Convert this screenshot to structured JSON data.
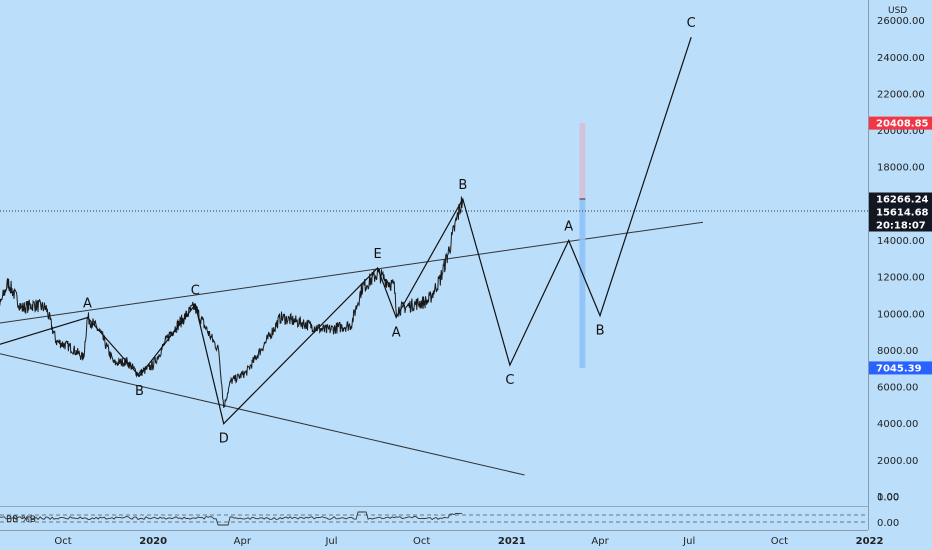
{
  "chart_data": {
    "type": "line",
    "currency": "USD",
    "y_axis": {
      "min": 0,
      "max": 26000,
      "ticks": [
        "0.00",
        "2000.00",
        "4000.00",
        "6000.00",
        "8000.00",
        "10000.00",
        "12000.00",
        "14000.00",
        "16000.00",
        "18000.00",
        "20000.00",
        "22000.00",
        "24000.00",
        "26000.00"
      ],
      "tick_values": [
        0,
        2000,
        4000,
        6000,
        8000,
        10000,
        12000,
        14000,
        16000,
        18000,
        20000,
        22000,
        24000,
        26000
      ]
    },
    "x_axis": {
      "labels": [
        "Oct",
        "2020",
        "Apr",
        "Jul",
        "Oct",
        "2021",
        "Apr",
        "Jul",
        "Oct",
        "2022"
      ],
      "dates": [
        "2019-10-01",
        "2020-01-01",
        "2020-04-01",
        "2020-07-01",
        "2020-10-01",
        "2021-01-01",
        "2021-04-01",
        "2021-07-01",
        "2021-10-01",
        "2022-01-01"
      ]
    },
    "price_series": [
      {
        "date": "2019-06-26",
        "value": 12500
      },
      {
        "date": "2019-07-05",
        "value": 11300
      },
      {
        "date": "2019-07-16",
        "value": 9800
      },
      {
        "date": "2019-07-28",
        "value": 10400
      },
      {
        "date": "2019-08-06",
        "value": 11700
      },
      {
        "date": "2019-08-20",
        "value": 10300
      },
      {
        "date": "2019-09-01",
        "value": 10500
      },
      {
        "date": "2019-09-14",
        "value": 10300
      },
      {
        "date": "2019-09-24",
        "value": 8500
      },
      {
        "date": "2019-10-08",
        "value": 8200
      },
      {
        "date": "2019-10-22",
        "value": 7600
      },
      {
        "date": "2019-10-26",
        "value": 9800
      },
      {
        "date": "2019-11-08",
        "value": 9000
      },
      {
        "date": "2019-11-22",
        "value": 7300
      },
      {
        "date": "2019-12-05",
        "value": 7400
      },
      {
        "date": "2019-12-17",
        "value": 6700
      },
      {
        "date": "2020-01-01",
        "value": 7200
      },
      {
        "date": "2020-01-18",
        "value": 8900
      },
      {
        "date": "2020-02-12",
        "value": 10400
      },
      {
        "date": "2020-02-26",
        "value": 9000
      },
      {
        "date": "2020-03-08",
        "value": 8000
      },
      {
        "date": "2020-03-13",
        "value": 4900
      },
      {
        "date": "2020-03-20",
        "value": 6300
      },
      {
        "date": "2020-04-05",
        "value": 6800
      },
      {
        "date": "2020-04-29",
        "value": 8800
      },
      {
        "date": "2020-05-10",
        "value": 9800
      },
      {
        "date": "2020-06-01",
        "value": 9500
      },
      {
        "date": "2020-06-25",
        "value": 9100
      },
      {
        "date": "2020-07-21",
        "value": 9400
      },
      {
        "date": "2020-08-01",
        "value": 11400
      },
      {
        "date": "2020-08-17",
        "value": 12200
      },
      {
        "date": "2020-09-03",
        "value": 11500
      },
      {
        "date": "2020-09-05",
        "value": 10200
      },
      {
        "date": "2020-09-22",
        "value": 10500
      },
      {
        "date": "2020-10-08",
        "value": 10700
      },
      {
        "date": "2020-10-20",
        "value": 11900
      },
      {
        "date": "2020-10-28",
        "value": 13300
      },
      {
        "date": "2020-11-07",
        "value": 15400
      },
      {
        "date": "2020-11-12",
        "value": 16266
      }
    ],
    "wave_path": [
      {
        "date": "2019-07-20",
        "value": 8200
      },
      {
        "date": "2019-10-26",
        "value": 9800,
        "label": "A"
      },
      {
        "date": "2019-12-18",
        "value": 6600,
        "label": "B"
      },
      {
        "date": "2020-02-13",
        "value": 10500,
        "label": "C"
      },
      {
        "date": "2020-03-13",
        "value": 4000,
        "label": "D"
      },
      {
        "date": "2020-08-17",
        "value": 12500,
        "label": "E"
      },
      {
        "date": "2020-09-05",
        "value": 9800,
        "label": "A"
      },
      {
        "date": "2020-11-12",
        "value": 16266,
        "label": "B"
      },
      {
        "date": "2020-12-30",
        "value": 7200,
        "label": "C"
      },
      {
        "date": "2021-02-28",
        "value": 14000,
        "label": "A"
      },
      {
        "date": "2021-04-01",
        "value": 9900,
        "label": "B"
      },
      {
        "date": "2021-07-03",
        "value": 25100,
        "label": "C"
      }
    ],
    "trendlines": [
      {
        "from": {
          "date": "2019-06-20",
          "value": 9200
        },
        "to": {
          "date": "2021-07-15",
          "value": 15000
        }
      },
      {
        "from": {
          "date": "2019-06-20",
          "value": 8300
        },
        "to": {
          "date": "2021-01-14",
          "value": 1200
        }
      }
    ],
    "target_box": {
      "date_start": "2021-03-11",
      "date_end": "2021-03-17",
      "top_value": 20408.85,
      "mid_value": 16266.24,
      "bottom_value": 7045.39
    },
    "price_labels": [
      {
        "value": 20408.85,
        "text": "20408.85",
        "color": "#f23645"
      },
      {
        "value": 16266.24,
        "text": "16266.24",
        "color": "#131722"
      },
      {
        "value": 15614.68,
        "text": "15614.68",
        "color": "#131722"
      },
      {
        "value": 7045.39,
        "text": "7045.39",
        "color": "#2962ff"
      }
    ],
    "countdown": "20:18:07",
    "current_price_line": 15614.68,
    "indicator": {
      "label": "BB %B",
      "ticks": [
        "1.00",
        "0.00"
      ]
    }
  }
}
